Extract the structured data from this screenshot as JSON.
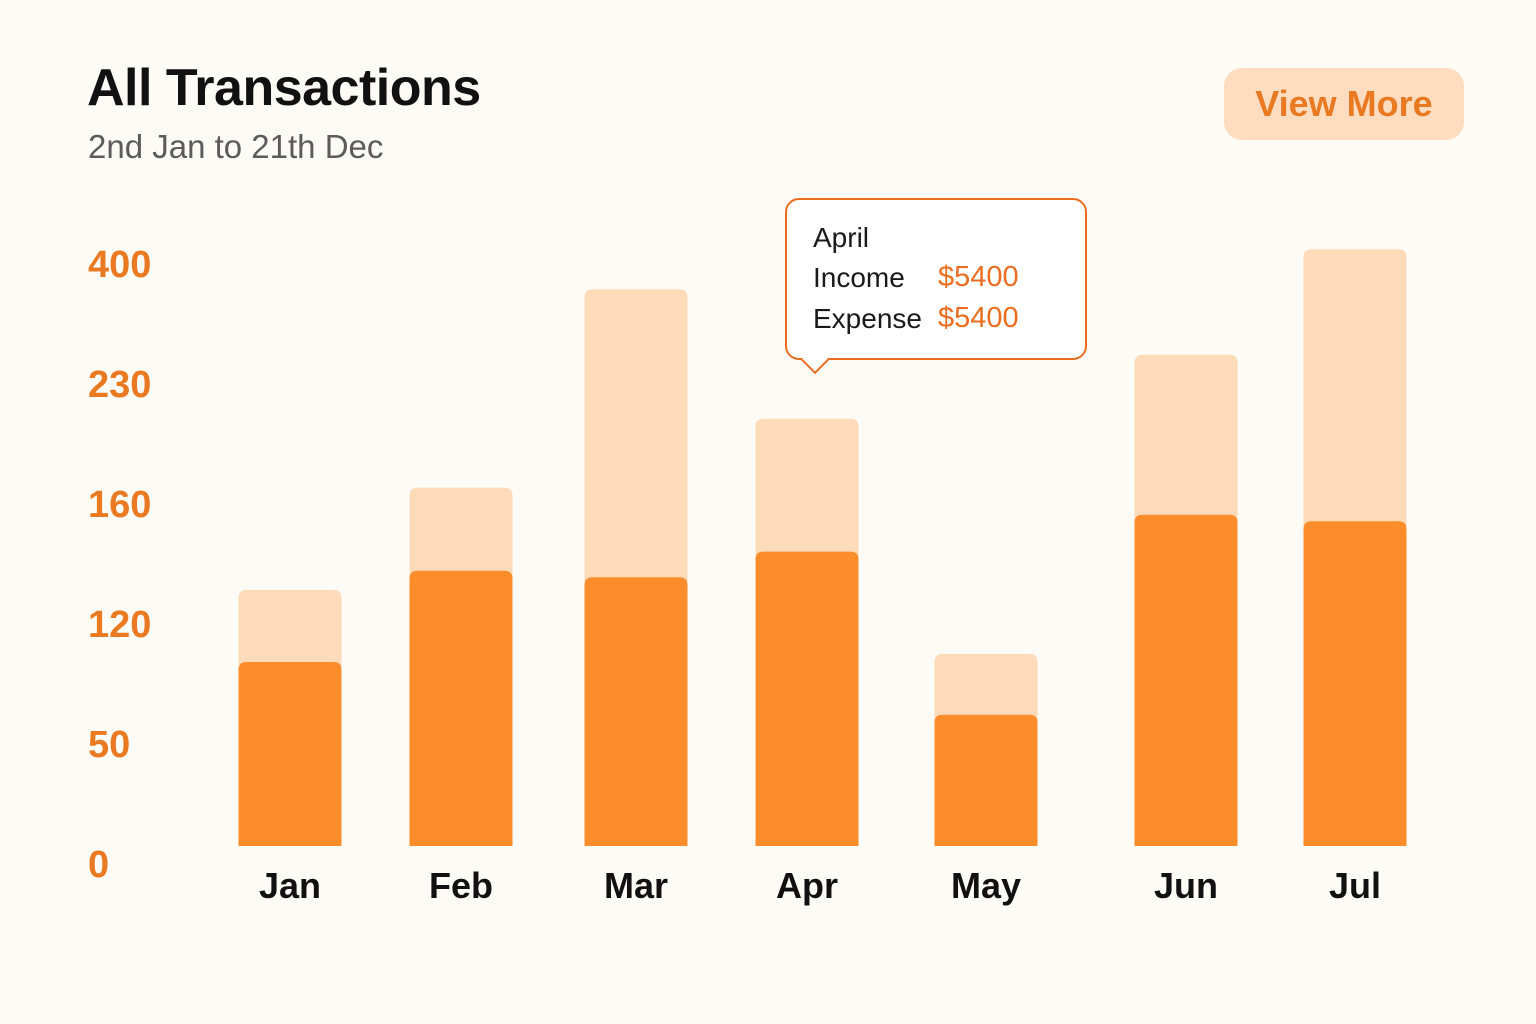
{
  "header": {
    "title": "All Transactions",
    "subtitle": "2nd Jan to 21th Dec",
    "view_more_label": "View More"
  },
  "tooltip": {
    "month": "April",
    "income_label": "Income",
    "income_value": "$5400",
    "expense_label": "Expense",
    "expense_value": "$5400"
  },
  "colors": {
    "income_bar": "#fd8c2a",
    "expense_bar": "#fddbb8",
    "axis_text": "#ea7a22",
    "category_text": "#111111",
    "accent": "#ea6d20"
  },
  "chart_data": {
    "type": "bar",
    "stacked": true,
    "title": "All Transactions",
    "subtitle": "2nd Jan to 21th Dec",
    "y_tick_labels": [
      "0",
      "50",
      "120",
      "160",
      "230",
      "400"
    ],
    "categories": [
      "Jan",
      "Feb",
      "Mar",
      "Apr",
      "May",
      "Jun",
      "Jul"
    ],
    "series": [
      {
        "values": [
          115,
          172,
          168,
          184,
          82,
          207,
          203
        ]
      },
      {
        "values": [
          45,
          52,
          180,
          83,
          38,
          100,
          170
        ]
      }
    ],
    "grid": false,
    "legend": "none"
  }
}
